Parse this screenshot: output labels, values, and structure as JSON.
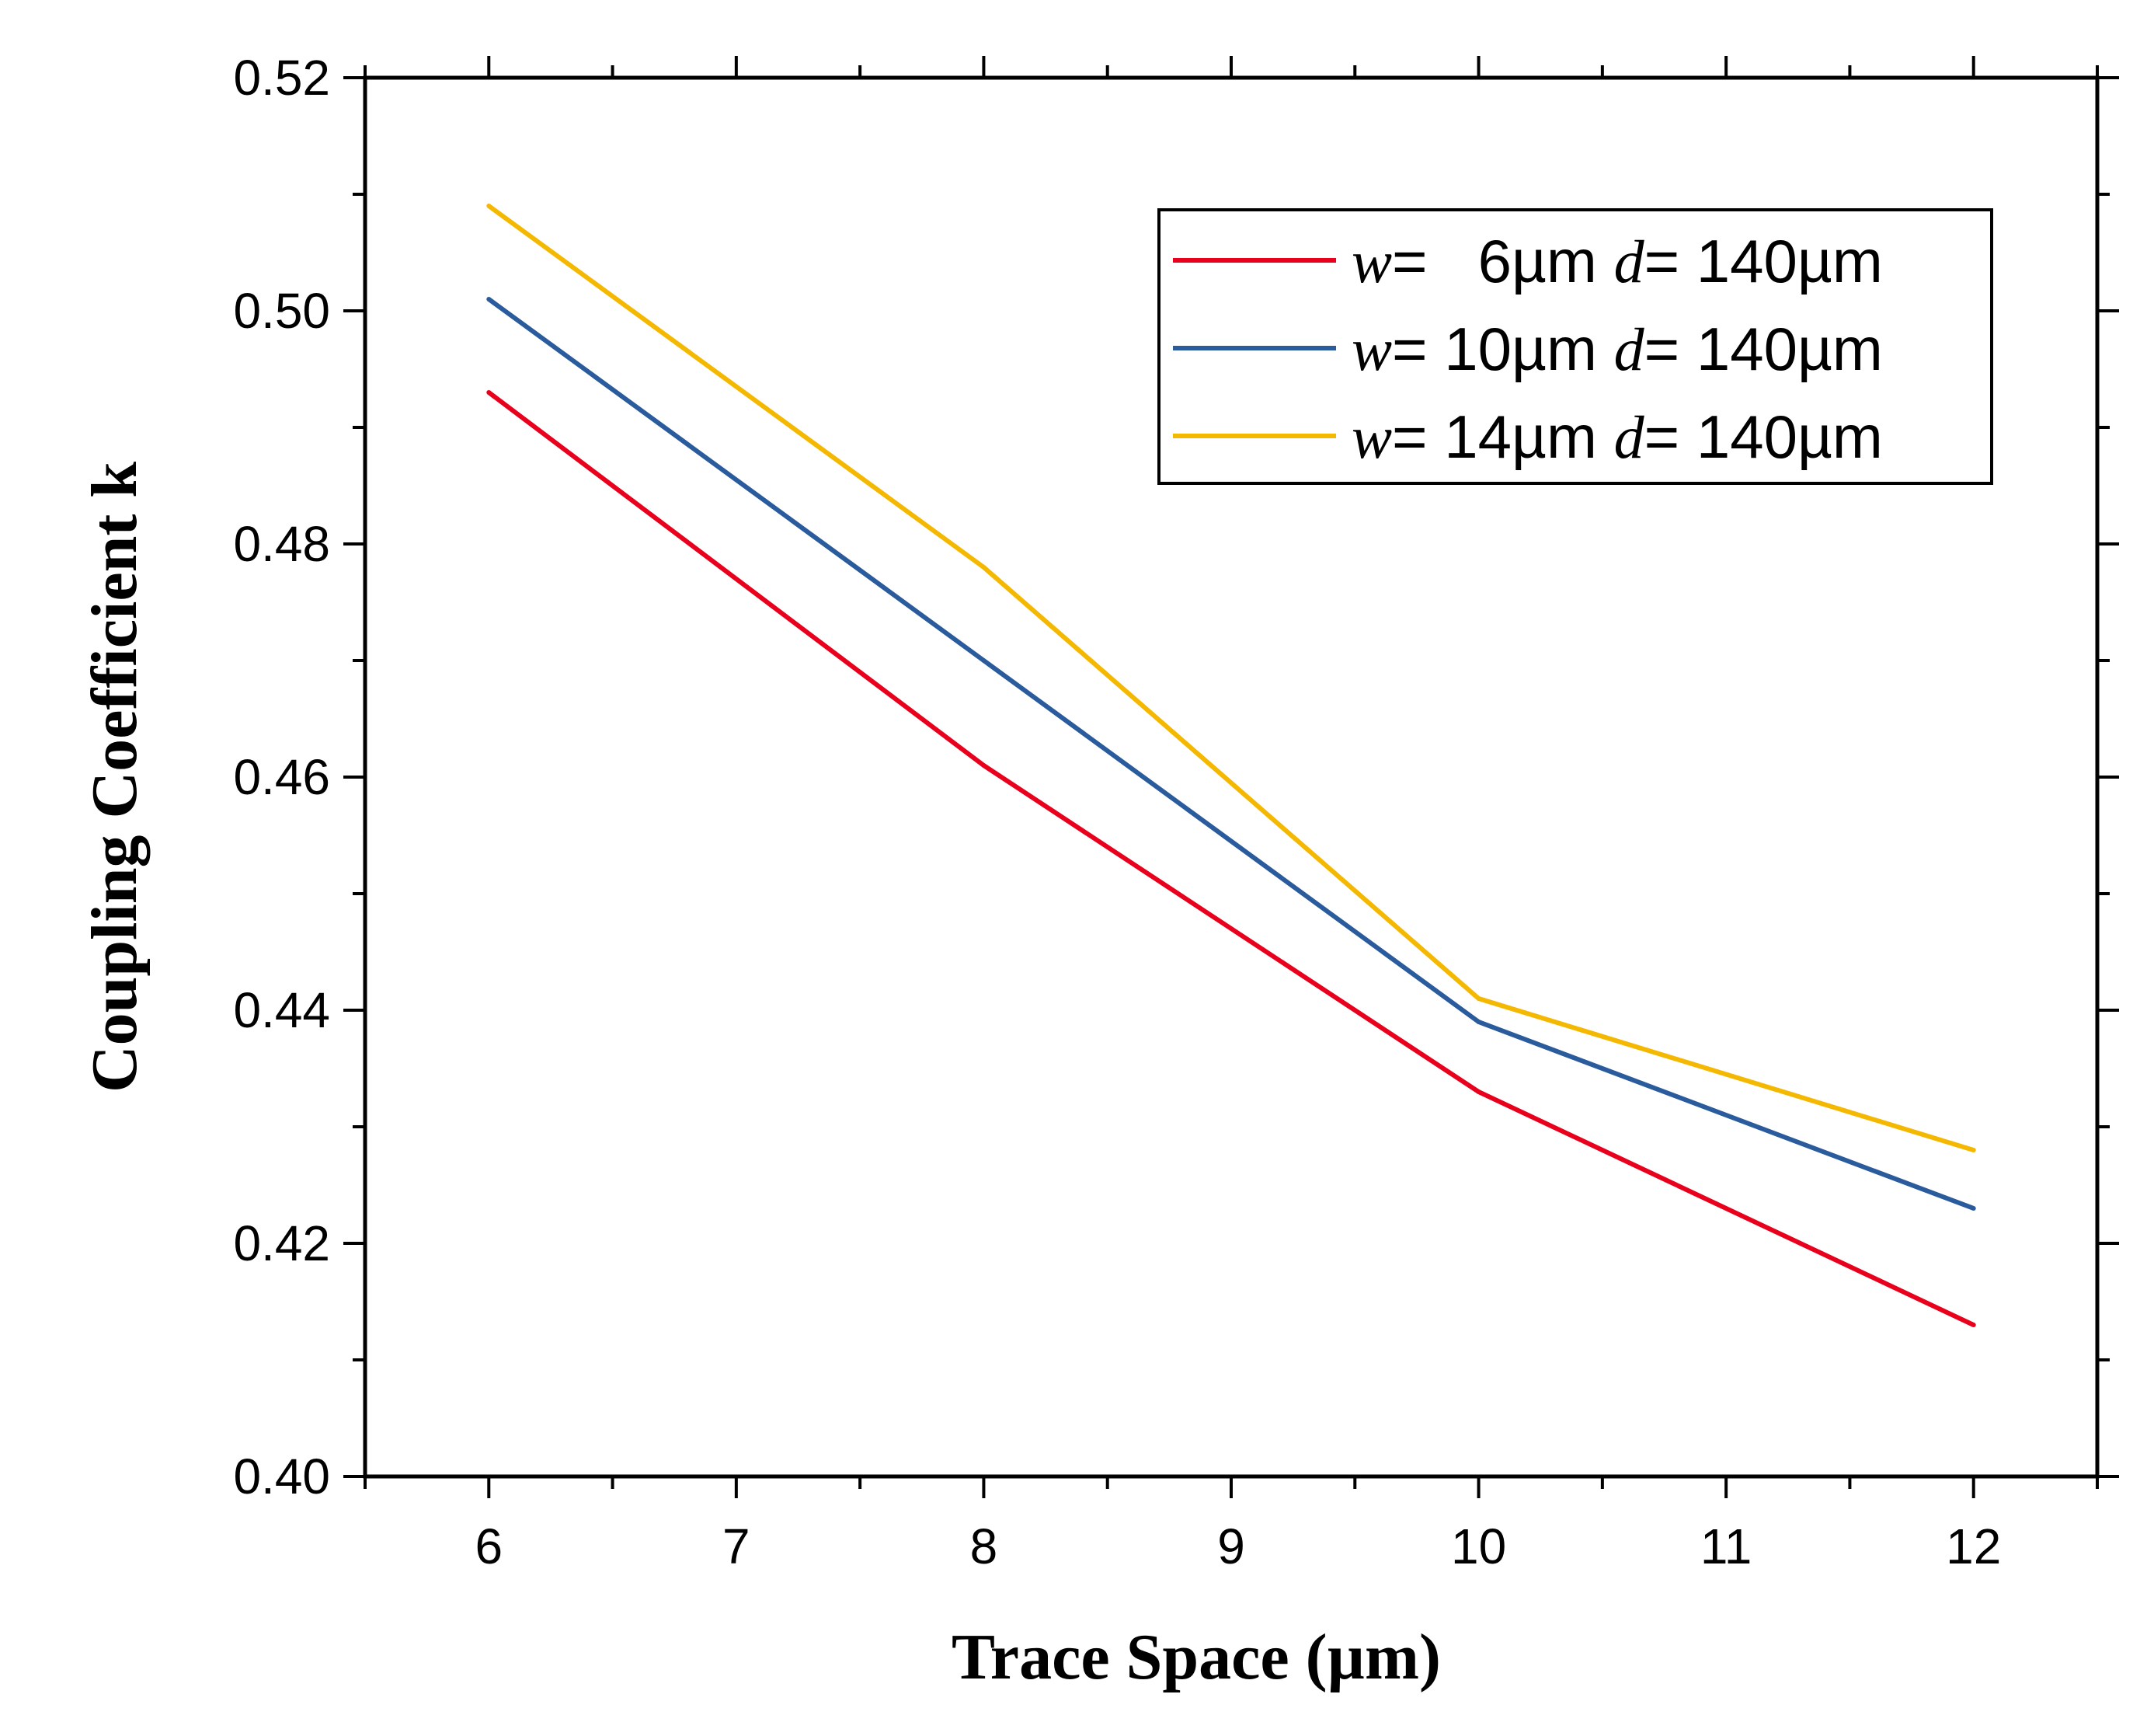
{
  "chart_data": {
    "type": "line",
    "title": "",
    "xlabel": "Trace Space (µm)",
    "ylabel": "Coupling Coefficient k",
    "xlim": [
      5.5,
      12.5
    ],
    "ylim": [
      0.4,
      0.52
    ],
    "x_ticks": [
      6,
      7,
      8,
      9,
      10,
      11,
      12
    ],
    "y_ticks": [
      0.4,
      0.42,
      0.44,
      0.46,
      0.48,
      0.5,
      0.52
    ],
    "x_tick_labels": [
      "6",
      "7",
      "8",
      "9",
      "10",
      "11",
      "12"
    ],
    "y_tick_labels": [
      "0.40",
      "0.42",
      "0.44",
      "0.46",
      "0.48",
      "0.50",
      "0.52"
    ],
    "grid": false,
    "legend_position": "top-right",
    "x": [
      6,
      8,
      10,
      12
    ],
    "series": [
      {
        "name": "w= 6µm d= 140µm",
        "legend_parts": [
          "w",
          "=   6µm ",
          "d",
          "= 140µm"
        ],
        "color": "#e8001c",
        "values": [
          0.493,
          0.461,
          0.433,
          0.413
        ]
      },
      {
        "name": "w= 10µm d= 140µm",
        "legend_parts": [
          "w",
          "= 10µm ",
          "d",
          "= 140µm"
        ],
        "color": "#2a5b9c",
        "values": [
          0.501,
          0.47,
          0.439,
          0.423
        ]
      },
      {
        "name": "w= 14µm d= 140µm",
        "legend_parts": [
          "w",
          "= 14µm ",
          "d",
          "= 140µm"
        ],
        "color": "#f5b800",
        "values": [
          0.509,
          0.478,
          0.441,
          0.428
        ]
      }
    ]
  }
}
